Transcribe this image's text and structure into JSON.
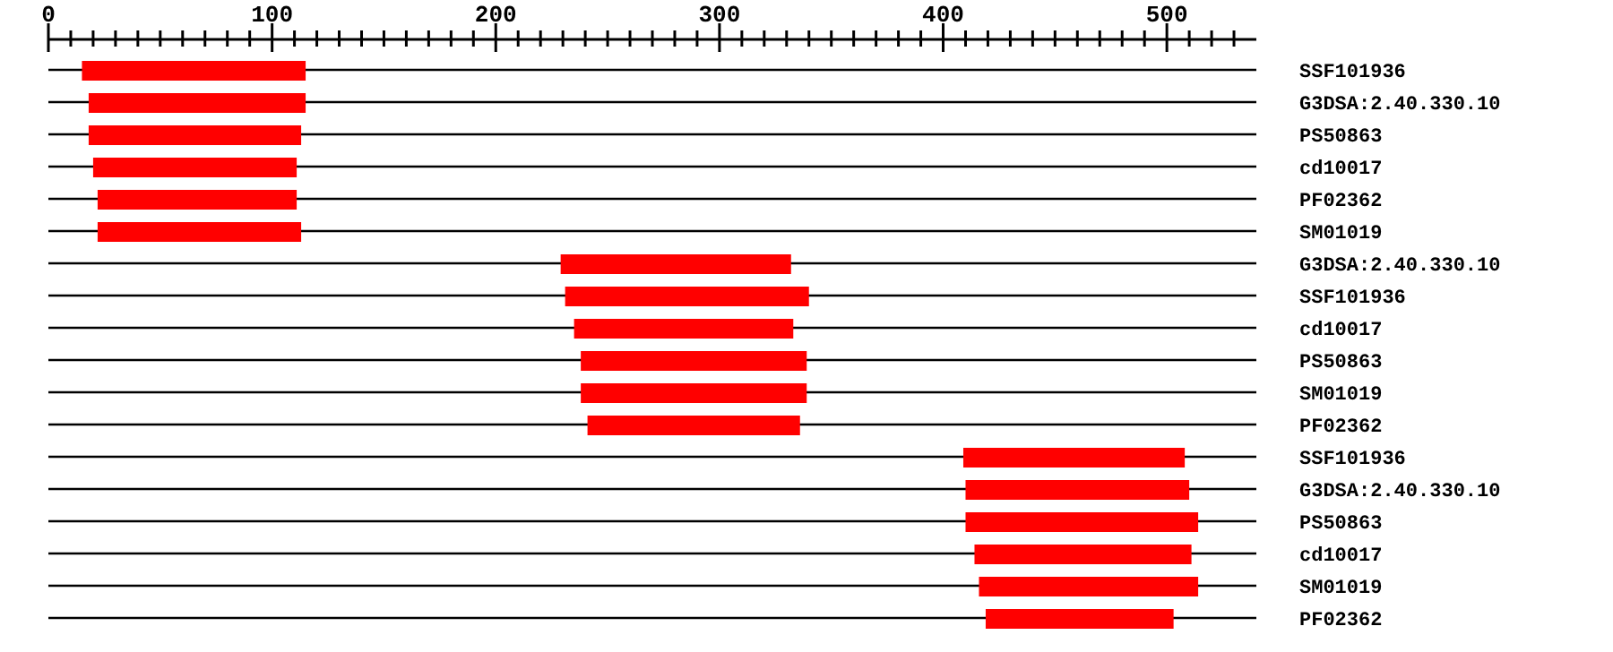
{
  "chart_data": {
    "type": "bar",
    "orientation": "horizontal",
    "grid": "y",
    "categories": [
      "SSF101936",
      "G3DSA:2.40.330.10",
      "PS50863",
      "cd10017",
      "PF02362",
      "SM01019",
      "G3DSA:2.40.330.10",
      "SSF101936",
      "cd10017",
      "PS50863",
      "SM01019",
      "PF02362",
      "SSF101936",
      "G3DSA:2.40.330.10",
      "PS50863",
      "cd10017",
      "SM01019",
      "PF02362"
    ],
    "base": [
      15,
      18,
      18,
      20,
      22,
      22,
      229,
      231,
      235,
      238,
      238,
      241,
      409,
      410,
      410,
      414,
      416,
      419
    ],
    "values": [
      100,
      97,
      95,
      91,
      89,
      91,
      103,
      109,
      98,
      101,
      101,
      95,
      99,
      100,
      104,
      97,
      98,
      84
    ],
    "color": "#ff0000",
    "xlim": [
      0,
      540
    ],
    "xticks": [
      0,
      {
        "value": 10,
        "label": null
      },
      {
        "value": 20,
        "label": null
      },
      {
        "value": 30,
        "label": null
      },
      {
        "value": 40,
        "label": null
      },
      {
        "value": 50,
        "label": null
      },
      {
        "value": 60,
        "label": null
      },
      {
        "value": 70,
        "label": null
      },
      {
        "value": 80,
        "label": null
      },
      {
        "value": 90,
        "label": null
      },
      100,
      {
        "value": 110,
        "label": null
      },
      {
        "value": 120,
        "label": null
      },
      {
        "value": 130,
        "label": null
      },
      {
        "value": 140,
        "label": null
      },
      {
        "value": 150,
        "label": null
      },
      {
        "value": 160,
        "label": null
      },
      {
        "value": 170,
        "label": null
      },
      {
        "value": 180,
        "label": null
      },
      {
        "value": 190,
        "label": null
      },
      200,
      {
        "value": 210,
        "label": null
      },
      {
        "value": 220,
        "label": null
      },
      {
        "value": 230,
        "label": null
      },
      {
        "value": 240,
        "label": null
      },
      {
        "value": 250,
        "label": null
      },
      {
        "value": 260,
        "label": null
      },
      {
        "value": 270,
        "label": null
      },
      {
        "value": 280,
        "label": null
      },
      {
        "value": 290,
        "label": null
      },
      300,
      {
        "value": 310,
        "label": null
      },
      {
        "value": 320,
        "label": null
      },
      {
        "value": 330,
        "label": null
      },
      {
        "value": 340,
        "label": null
      },
      {
        "value": 350,
        "label": null
      },
      {
        "value": 360,
        "label": null
      },
      {
        "value": 370,
        "label": null
      },
      {
        "value": 380,
        "label": null
      },
      {
        "value": 390,
        "label": null
      },
      400,
      {
        "value": 410,
        "label": null
      },
      {
        "value": 420,
        "label": null
      },
      {
        "value": 430,
        "label": null
      },
      {
        "value": 440,
        "label": null
      },
      {
        "value": 450,
        "label": null
      },
      {
        "value": 460,
        "label": null
      },
      {
        "value": 470,
        "label": null
      },
      {
        "value": 480,
        "label": null
      },
      {
        "value": 490,
        "label": null
      },
      500,
      {
        "value": 510,
        "label": null
      },
      {
        "value": 520,
        "label": null
      },
      {
        "value": 530,
        "label": null
      }
    ]
  }
}
